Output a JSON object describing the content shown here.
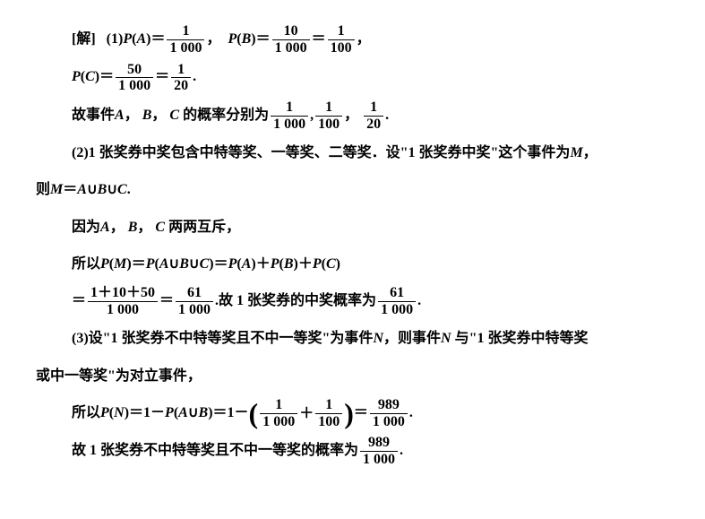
{
  "lines": {
    "l1_label": "[解]",
    "l1_part": "(1)",
    "l1_text1": "P",
    "l1_text2": "(A)＝",
    "f1_num": "1",
    "f1_den": "1 000",
    "l1_comma": "，",
    "l1_text3": "P",
    "l1_text4": "(B)＝",
    "f2_num": "10",
    "f2_den": "1 000",
    "l1_eq": "＝",
    "f3_num": "1",
    "f3_den": "100",
    "l1_end": "，",
    "l2_text1": "P",
    "l2_text2": "(C)＝",
    "f4_num": "50",
    "f4_den": "1 000",
    "l2_eq": "＝",
    "f5_num": "1",
    "f5_den": "20",
    "l2_end": ".",
    "l3_text1": "故事件",
    "l3_A": "A",
    "l3_c1": "，",
    "l3_B": "B",
    "l3_c2": "，",
    "l3_C": "C",
    "l3_text2": " 的概率分别为",
    "f6_num": "1",
    "f6_den": "1 000",
    "l3_c3": ",",
    "f7_num": "1",
    "f7_den": "100",
    "l3_c4": "，",
    "f8_num": "1",
    "f8_den": "20",
    "l3_end": ".",
    "l4_part": "(2)1 张奖券中奖包含中特等奖、一等奖、二等奖．设\"1 张奖券中奖\"这个事件为",
    "l4_M": "M",
    "l4_end": "，",
    "l5_text1": "则",
    "l5_M": "M",
    "l5_eq": "＝",
    "l5_A": "A",
    "l5_u1": "∪",
    "l5_B": "B",
    "l5_u2": "∪",
    "l5_C": "C",
    "l5_end": ".",
    "l6_text1": "因为",
    "l6_A": "A",
    "l6_c1": "，",
    "l6_B": "B",
    "l6_c2": "，",
    "l6_C": "C",
    "l6_text2": " 两两互斥，",
    "l7_text1": "所以",
    "l7_P1": "P",
    "l7_t2": "(",
    "l7_M": "M",
    "l7_t3": ")＝",
    "l7_P2": "P",
    "l7_t4": "(",
    "l7_A": "A",
    "l7_u1": "∪",
    "l7_B": "B",
    "l7_u2": "∪",
    "l7_C": "C",
    "l7_t5": ")＝",
    "l7_P3": "P",
    "l7_t6": "(",
    "l7_A2": "A",
    "l7_t7": ")＋",
    "l7_P4": "P",
    "l7_t8": "(",
    "l7_B2": "B",
    "l7_t9": ")＋",
    "l7_P5": "P",
    "l7_t10": "(",
    "l7_C2": "C",
    "l7_t11": ")",
    "l8_eq1": "＝",
    "f9_num": "1＋10＋50",
    "f9_den": "1 000",
    "l8_eq2": "＝",
    "f10_num": "61",
    "f10_den": "1 000",
    "l8_text": ".故 1 张奖券的中奖概率为",
    "f11_num": "61",
    "f11_den": "1 000",
    "l8_end": ".",
    "l9_part": "(3)设\"1 张奖券不中特等奖且不中一等奖\"为事件",
    "l9_N": "N",
    "l9_text": "，则事件",
    "l9_N2": "N",
    "l9_text2": " 与\"1 张奖券中特等奖",
    "l10_text": "或中一等奖\"为对立事件，",
    "l11_text1": "所以",
    "l11_P1": "P",
    "l11_t2": "(",
    "l11_N": "N",
    "l11_t3": ")＝1－",
    "l11_P2": "P",
    "l11_t4": "(",
    "l11_A": "A",
    "l11_u": "∪",
    "l11_B": "B",
    "l11_t5": ")＝1－",
    "f12_num": "1",
    "f12_den": "1 000",
    "l11_plus": "＋",
    "f13_num": "1",
    "f13_den": "100",
    "l11_eq": "＝",
    "f14_num": "989",
    "f14_den": "1 000",
    "l11_end": ".",
    "l12_text": "故 1 张奖券不中特等奖且不中一等奖的概率为",
    "f15_num": "989",
    "f15_den": "1 000",
    "l12_end": "."
  }
}
